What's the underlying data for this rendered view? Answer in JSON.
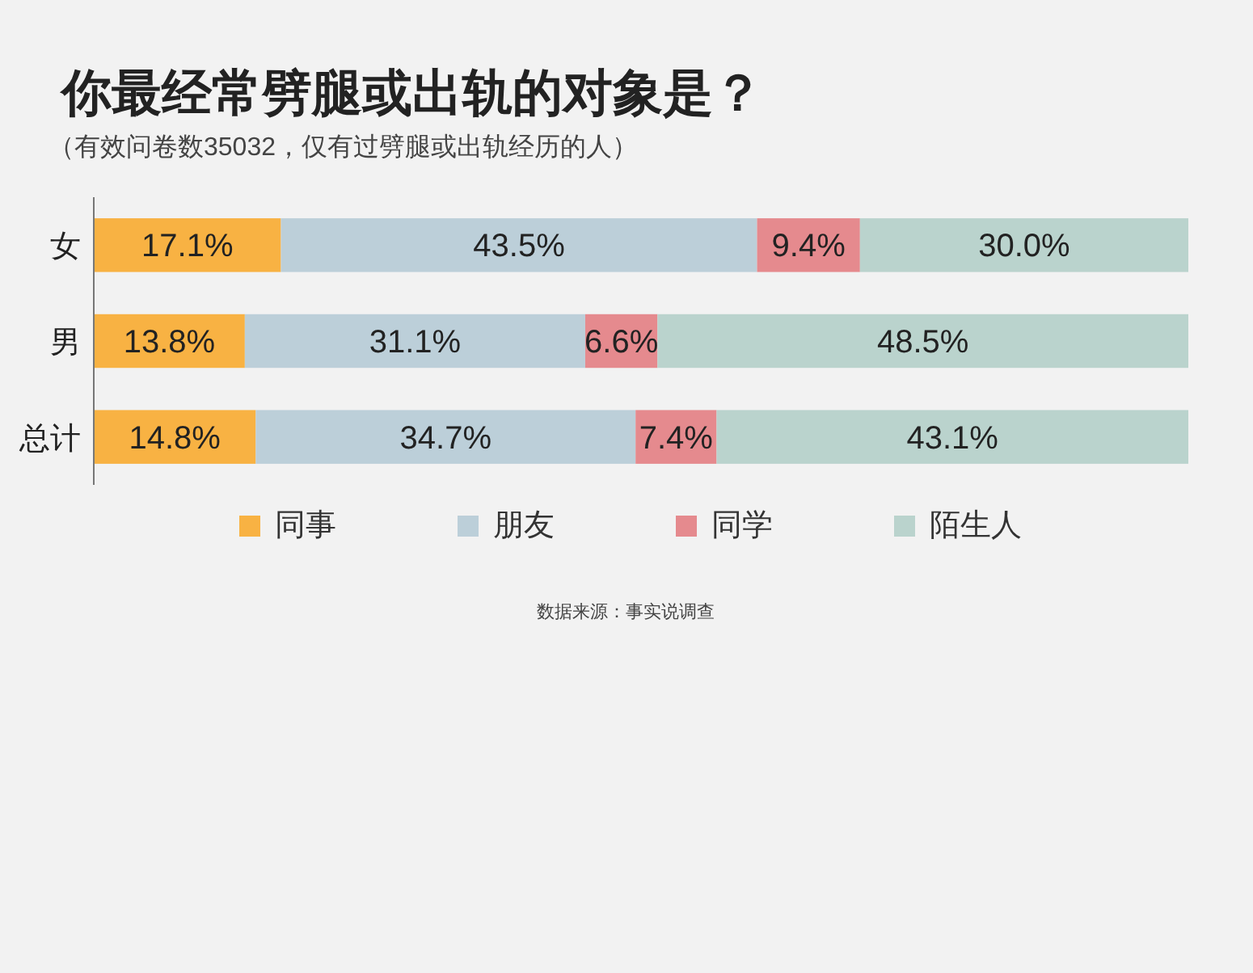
{
  "chart_data": {
    "type": "bar",
    "orientation": "horizontal",
    "stacked": true,
    "title": "你最经常劈腿或出轨的对象是？",
    "subtitle": "（有效问卷数35032，仅有过劈腿或出轨经历的人）",
    "categories": [
      "女",
      "男",
      "总计"
    ],
    "xlim": [
      0,
      100
    ],
    "tick_labels": "y",
    "legend": "bottom",
    "series": [
      {
        "name": "同事",
        "color": "#f8b243",
        "values": [
          17.1,
          13.8,
          14.8
        ],
        "value_labels": [
          "17.1%",
          "13.8%",
          "14.8%"
        ]
      },
      {
        "name": "朋友",
        "color": "#bccfd9",
        "values": [
          43.5,
          31.1,
          34.7
        ],
        "value_labels": [
          "43.5%",
          "31.1%",
          "34.7%"
        ]
      },
      {
        "name": "同学",
        "color": "#e58a8e",
        "values": [
          9.4,
          6.6,
          7.4
        ],
        "value_labels": [
          "9.4%",
          "6.6%",
          "7.4%"
        ]
      },
      {
        "name": "陌生人",
        "color": "#bad3cd",
        "values": [
          30.0,
          48.5,
          43.1
        ],
        "value_labels": [
          "30.0%",
          "48.5%",
          "43.1%"
        ]
      }
    ],
    "annotations": [
      "数据来源：事实说调查"
    ]
  }
}
